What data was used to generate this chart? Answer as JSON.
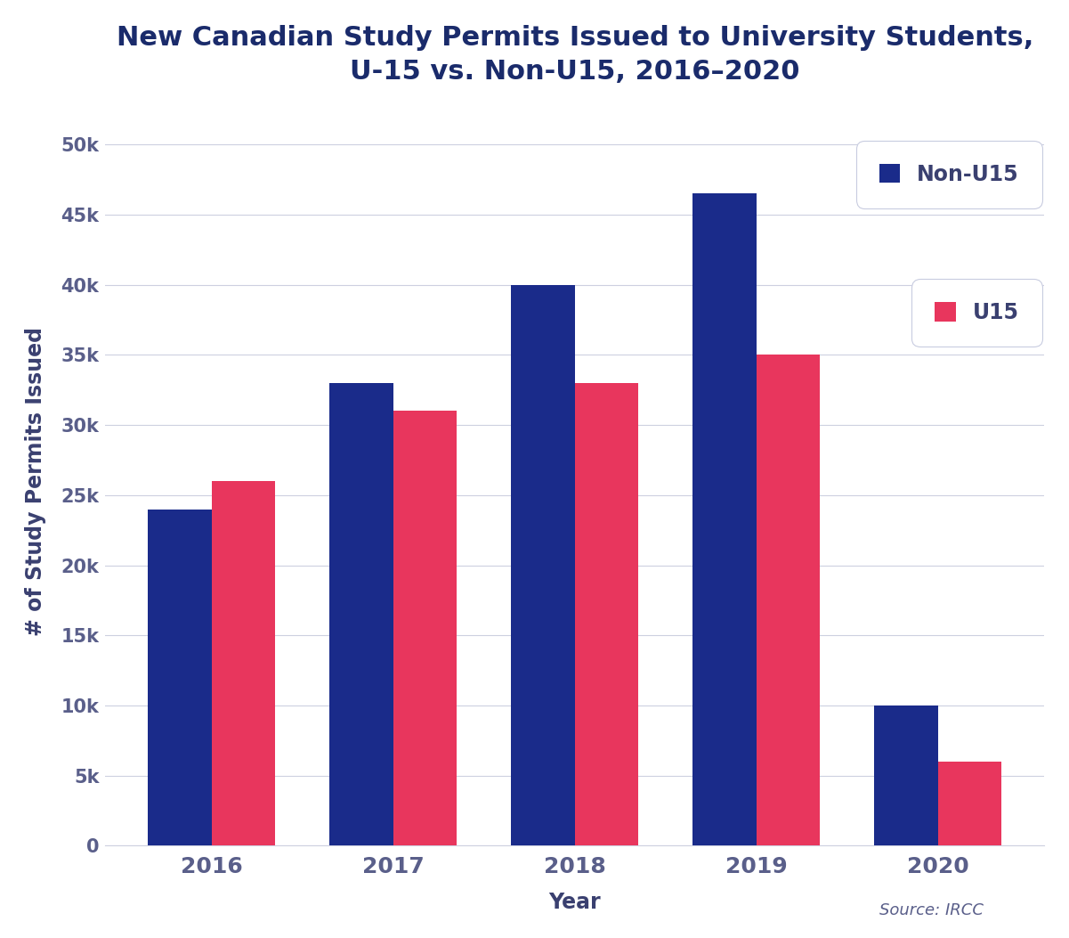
{
  "title": "New Canadian Study Permits Issued to University Students,\nU-15 vs. Non-U15, 2016–2020",
  "years": [
    2016,
    2017,
    2018,
    2019,
    2020
  ],
  "non_u15": [
    24000,
    33000,
    40000,
    46500,
    10000
  ],
  "u15": [
    26000,
    31000,
    33000,
    35000,
    6000
  ],
  "non_u15_color": "#1a2b8a",
  "u15_color": "#e8365d",
  "ylabel": "# of Study Permits Issued",
  "xlabel": "Year",
  "ylim": [
    0,
    52000
  ],
  "yticks": [
    0,
    5000,
    10000,
    15000,
    20000,
    25000,
    30000,
    35000,
    40000,
    45000,
    50000
  ],
  "ytick_labels": [
    "0",
    "5k",
    "10k",
    "15k",
    "20k",
    "25k",
    "30k",
    "35k",
    "40k",
    "45k",
    "50k"
  ],
  "bar_width": 0.35,
  "legend_labels": [
    "Non-U15",
    "U15"
  ],
  "source_text": "Source: IRCC",
  "background_color": "#ffffff",
  "grid_color": "#cdd0e0",
  "title_color": "#1a2b6b",
  "axis_label_color": "#3a4070",
  "tick_label_color": "#5a5f8a",
  "title_fontsize": 22,
  "axis_label_fontsize": 17,
  "tick_fontsize": 15,
  "legend_fontsize": 17,
  "source_fontsize": 13
}
